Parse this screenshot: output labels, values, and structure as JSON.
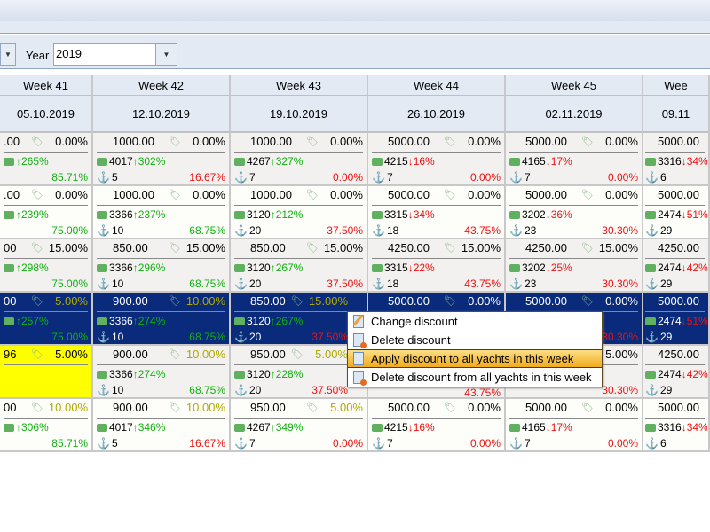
{
  "filter": {
    "year_label": "Year",
    "year_value": "2019"
  },
  "weeks": [
    {
      "label": "Week 41",
      "date": "05.10.2019",
      "cells": [
        {
          "price": ".00",
          "disc": "0.00%",
          "dc": "",
          "amount": "",
          "trend": "up",
          "pct": "265%",
          "berths": "",
          "occ": "85.71%",
          "oc": "g"
        },
        {
          "price": ".00",
          "disc": "0.00%",
          "dc": "",
          "amount": "",
          "trend": "up",
          "pct": "239%",
          "berths": "",
          "occ": "75.00%",
          "oc": "g"
        },
        {
          "price": "00",
          "disc": "15.00%",
          "dc": "",
          "amount": "",
          "trend": "up",
          "pct": "298%",
          "berths": "",
          "occ": "75.00%",
          "oc": "g"
        },
        {
          "price": "00",
          "disc": "5.00%",
          "dc": "o",
          "amount": "",
          "trend": "up",
          "pct": "257%",
          "berths": "",
          "occ": "75.00%",
          "oc": "g"
        },
        {
          "price": "96",
          "disc": "5.00%",
          "dc": "",
          "amount": "",
          "trend": "",
          "pct": "",
          "berths": "",
          "occ": "",
          "oc": ""
        },
        {
          "price": "00",
          "disc": "10.00%",
          "dc": "o",
          "amount": "",
          "trend": "up",
          "pct": "306%",
          "berths": "",
          "occ": "85.71%",
          "oc": "g"
        }
      ]
    },
    {
      "label": "Week 42",
      "date": "12.10.2019",
      "cells": [
        {
          "price": "1000.00",
          "disc": "0.00%",
          "dc": "",
          "amount": "4017",
          "trend": "up",
          "pct": "302%",
          "berths": "5",
          "occ": "16.67%",
          "oc": "r"
        },
        {
          "price": "1000.00",
          "disc": "0.00%",
          "dc": "",
          "amount": "3366",
          "trend": "up",
          "pct": "237%",
          "berths": "10",
          "occ": "68.75%",
          "oc": "g"
        },
        {
          "price": "850.00",
          "disc": "15.00%",
          "dc": "",
          "amount": "3366",
          "trend": "up",
          "pct": "296%",
          "berths": "10",
          "occ": "68.75%",
          "oc": "g"
        },
        {
          "price": "900.00",
          "disc": "10.00%",
          "dc": "o",
          "amount": "3366",
          "trend": "up",
          "pct": "274%",
          "berths": "10",
          "occ": "68.75%",
          "oc": "g"
        },
        {
          "price": "900.00",
          "disc": "10.00%",
          "dc": "o",
          "amount": "3366",
          "trend": "up",
          "pct": "274%",
          "berths": "10",
          "occ": "68.75%",
          "oc": "g"
        },
        {
          "price": "900.00",
          "disc": "10.00%",
          "dc": "o",
          "amount": "4017",
          "trend": "up",
          "pct": "346%",
          "berths": "5",
          "occ": "16.67%",
          "oc": "r"
        }
      ]
    },
    {
      "label": "Week 43",
      "date": "19.10.2019",
      "cells": [
        {
          "price": "1000.00",
          "disc": "0.00%",
          "dc": "",
          "amount": "4267",
          "trend": "up",
          "pct": "327%",
          "berths": "7",
          "occ": "0.00%",
          "oc": "r"
        },
        {
          "price": "1000.00",
          "disc": "0.00%",
          "dc": "",
          "amount": "3120",
          "trend": "up",
          "pct": "212%",
          "berths": "20",
          "occ": "37.50%",
          "oc": "r"
        },
        {
          "price": "850.00",
          "disc": "15.00%",
          "dc": "",
          "amount": "3120",
          "trend": "up",
          "pct": "267%",
          "berths": "20",
          "occ": "37.50%",
          "oc": "r"
        },
        {
          "price": "850.00",
          "disc": "15.00%",
          "dc": "o",
          "amount": "3120",
          "trend": "up",
          "pct": "267%",
          "berths": "20",
          "occ": "37.50%",
          "oc": "r"
        },
        {
          "price": "950.00",
          "disc": "5.00%",
          "dc": "o",
          "amount": "3120",
          "trend": "up",
          "pct": "228%",
          "berths": "20",
          "occ": "37.50%",
          "oc": "r"
        },
        {
          "price": "950.00",
          "disc": "5.00%",
          "dc": "o",
          "amount": "4267",
          "trend": "up",
          "pct": "349%",
          "berths": "7",
          "occ": "0.00%",
          "oc": "r"
        }
      ]
    },
    {
      "label": "Week 44",
      "date": "26.10.2019",
      "cells": [
        {
          "price": "5000.00",
          "disc": "0.00%",
          "dc": "",
          "amount": "4215",
          "trend": "down",
          "pct": "16%",
          "berths": "7",
          "occ": "0.00%",
          "oc": "r"
        },
        {
          "price": "5000.00",
          "disc": "0.00%",
          "dc": "",
          "amount": "3315",
          "trend": "down",
          "pct": "34%",
          "berths": "18",
          "occ": "43.75%",
          "oc": "r"
        },
        {
          "price": "4250.00",
          "disc": "15.00%",
          "dc": "",
          "amount": "3315",
          "trend": "down",
          "pct": "22%",
          "berths": "18",
          "occ": "43.75%",
          "oc": "r"
        },
        {
          "price": "5000.00",
          "disc": "0.00%",
          "dc": "",
          "amount": "",
          "trend": "",
          "pct": "",
          "berths": "",
          "occ": "",
          "oc": "r"
        },
        {
          "price": "",
          "disc": "",
          "dc": "",
          "amount": "",
          "trend": "",
          "pct": "",
          "berths": "",
          "occ": "43.75%",
          "oc": "r"
        },
        {
          "price": "5000.00",
          "disc": "0.00%",
          "dc": "",
          "amount": "4215",
          "trend": "down",
          "pct": "16%",
          "berths": "7",
          "occ": "0.00%",
          "oc": "r"
        }
      ]
    },
    {
      "label": "Week 45",
      "date": "02.11.2019",
      "cells": [
        {
          "price": "5000.00",
          "disc": "0.00%",
          "dc": "",
          "amount": "4165",
          "trend": "down",
          "pct": "17%",
          "berths": "7",
          "occ": "0.00%",
          "oc": "r"
        },
        {
          "price": "5000.00",
          "disc": "0.00%",
          "dc": "",
          "amount": "3202",
          "trend": "down",
          "pct": "36%",
          "berths": "23",
          "occ": "30.30%",
          "oc": "r"
        },
        {
          "price": "4250.00",
          "disc": "15.00%",
          "dc": "",
          "amount": "3202",
          "trend": "down",
          "pct": "25%",
          "berths": "23",
          "occ": "30.30%",
          "oc": "r"
        },
        {
          "price": "5000.00",
          "disc": "0.00%",
          "dc": "",
          "amount": "",
          "trend": "",
          "pct": "",
          "berths": "",
          "occ": "30.30%",
          "oc": "r"
        },
        {
          "price": "",
          "disc": "5.00%",
          "dc": "",
          "amount": "",
          "trend": "",
          "pct": "",
          "berths": "",
          "occ": "30.30%",
          "oc": "r"
        },
        {
          "price": "5000.00",
          "disc": "0.00%",
          "dc": "",
          "amount": "4165",
          "trend": "down",
          "pct": "17%",
          "berths": "7",
          "occ": "0.00%",
          "oc": "r"
        }
      ]
    },
    {
      "label": "Wee",
      "date": "09.11",
      "cells": [
        {
          "price": "5000.00",
          "disc": "",
          "dc": "",
          "amount": "3316",
          "trend": "down",
          "pct": "34%",
          "berths": "6",
          "occ": "",
          "oc": "r"
        },
        {
          "price": "5000.00",
          "disc": "",
          "dc": "",
          "amount": "2474",
          "trend": "down",
          "pct": "51%",
          "berths": "29",
          "occ": "",
          "oc": "r"
        },
        {
          "price": "4250.00",
          "disc": "",
          "dc": "",
          "amount": "2474",
          "trend": "down",
          "pct": "42%",
          "berths": "29",
          "occ": "",
          "oc": "r"
        },
        {
          "price": "5000.00",
          "disc": "",
          "dc": "",
          "amount": "2474",
          "trend": "down",
          "pct": "51%",
          "berths": "29",
          "occ": "",
          "oc": "r"
        },
        {
          "price": "4250.00",
          "disc": "",
          "dc": "",
          "amount": "2474",
          "trend": "down",
          "pct": "42%",
          "berths": "29",
          "occ": "",
          "oc": "r"
        },
        {
          "price": "5000.00",
          "disc": "",
          "dc": "",
          "amount": "3316",
          "trend": "down",
          "pct": "34%",
          "berths": "6",
          "occ": "",
          "oc": "r"
        }
      ]
    }
  ],
  "context_menu": {
    "items": [
      {
        "label": "Change discount",
        "icon": "edit"
      },
      {
        "label": "Delete discount",
        "icon": "del"
      },
      {
        "label": "Apply discount to all yachts in this week",
        "icon": "copy"
      },
      {
        "label": "Delete discount from all yachts in this week",
        "icon": "del"
      }
    ],
    "highlighted": 2
  }
}
